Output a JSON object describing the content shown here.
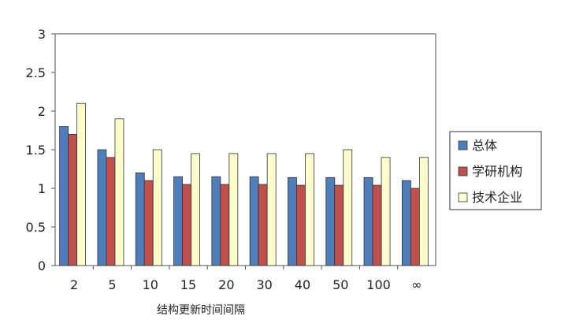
{
  "chart_data": {
    "type": "bar",
    "title": "",
    "xlabel": "结构更新时间间隔",
    "ylabel": "",
    "categories": [
      "2",
      "5",
      "10",
      "15",
      "20",
      "30",
      "40",
      "50",
      "100",
      "∞"
    ],
    "ylim": [
      0,
      3
    ],
    "yticks": [
      "0",
      "0.5",
      "1",
      "1.5",
      "2",
      "2.5",
      "3"
    ],
    "grid": false,
    "legend_position": "right",
    "series": [
      {
        "name": "总体",
        "color": "#4F7EBD",
        "values": [
          1.8,
          1.5,
          1.2,
          1.15,
          1.15,
          1.15,
          1.14,
          1.14,
          1.14,
          1.1
        ]
      },
      {
        "name": "学研机构",
        "color": "#C0504D",
        "values": [
          1.7,
          1.4,
          1.1,
          1.05,
          1.05,
          1.05,
          1.04,
          1.04,
          1.04,
          1.0
        ]
      },
      {
        "name": "技术企业",
        "color": "#FFFDCC",
        "values": [
          2.1,
          1.9,
          1.5,
          1.45,
          1.45,
          1.45,
          1.45,
          1.5,
          1.4,
          1.4
        ]
      }
    ]
  }
}
